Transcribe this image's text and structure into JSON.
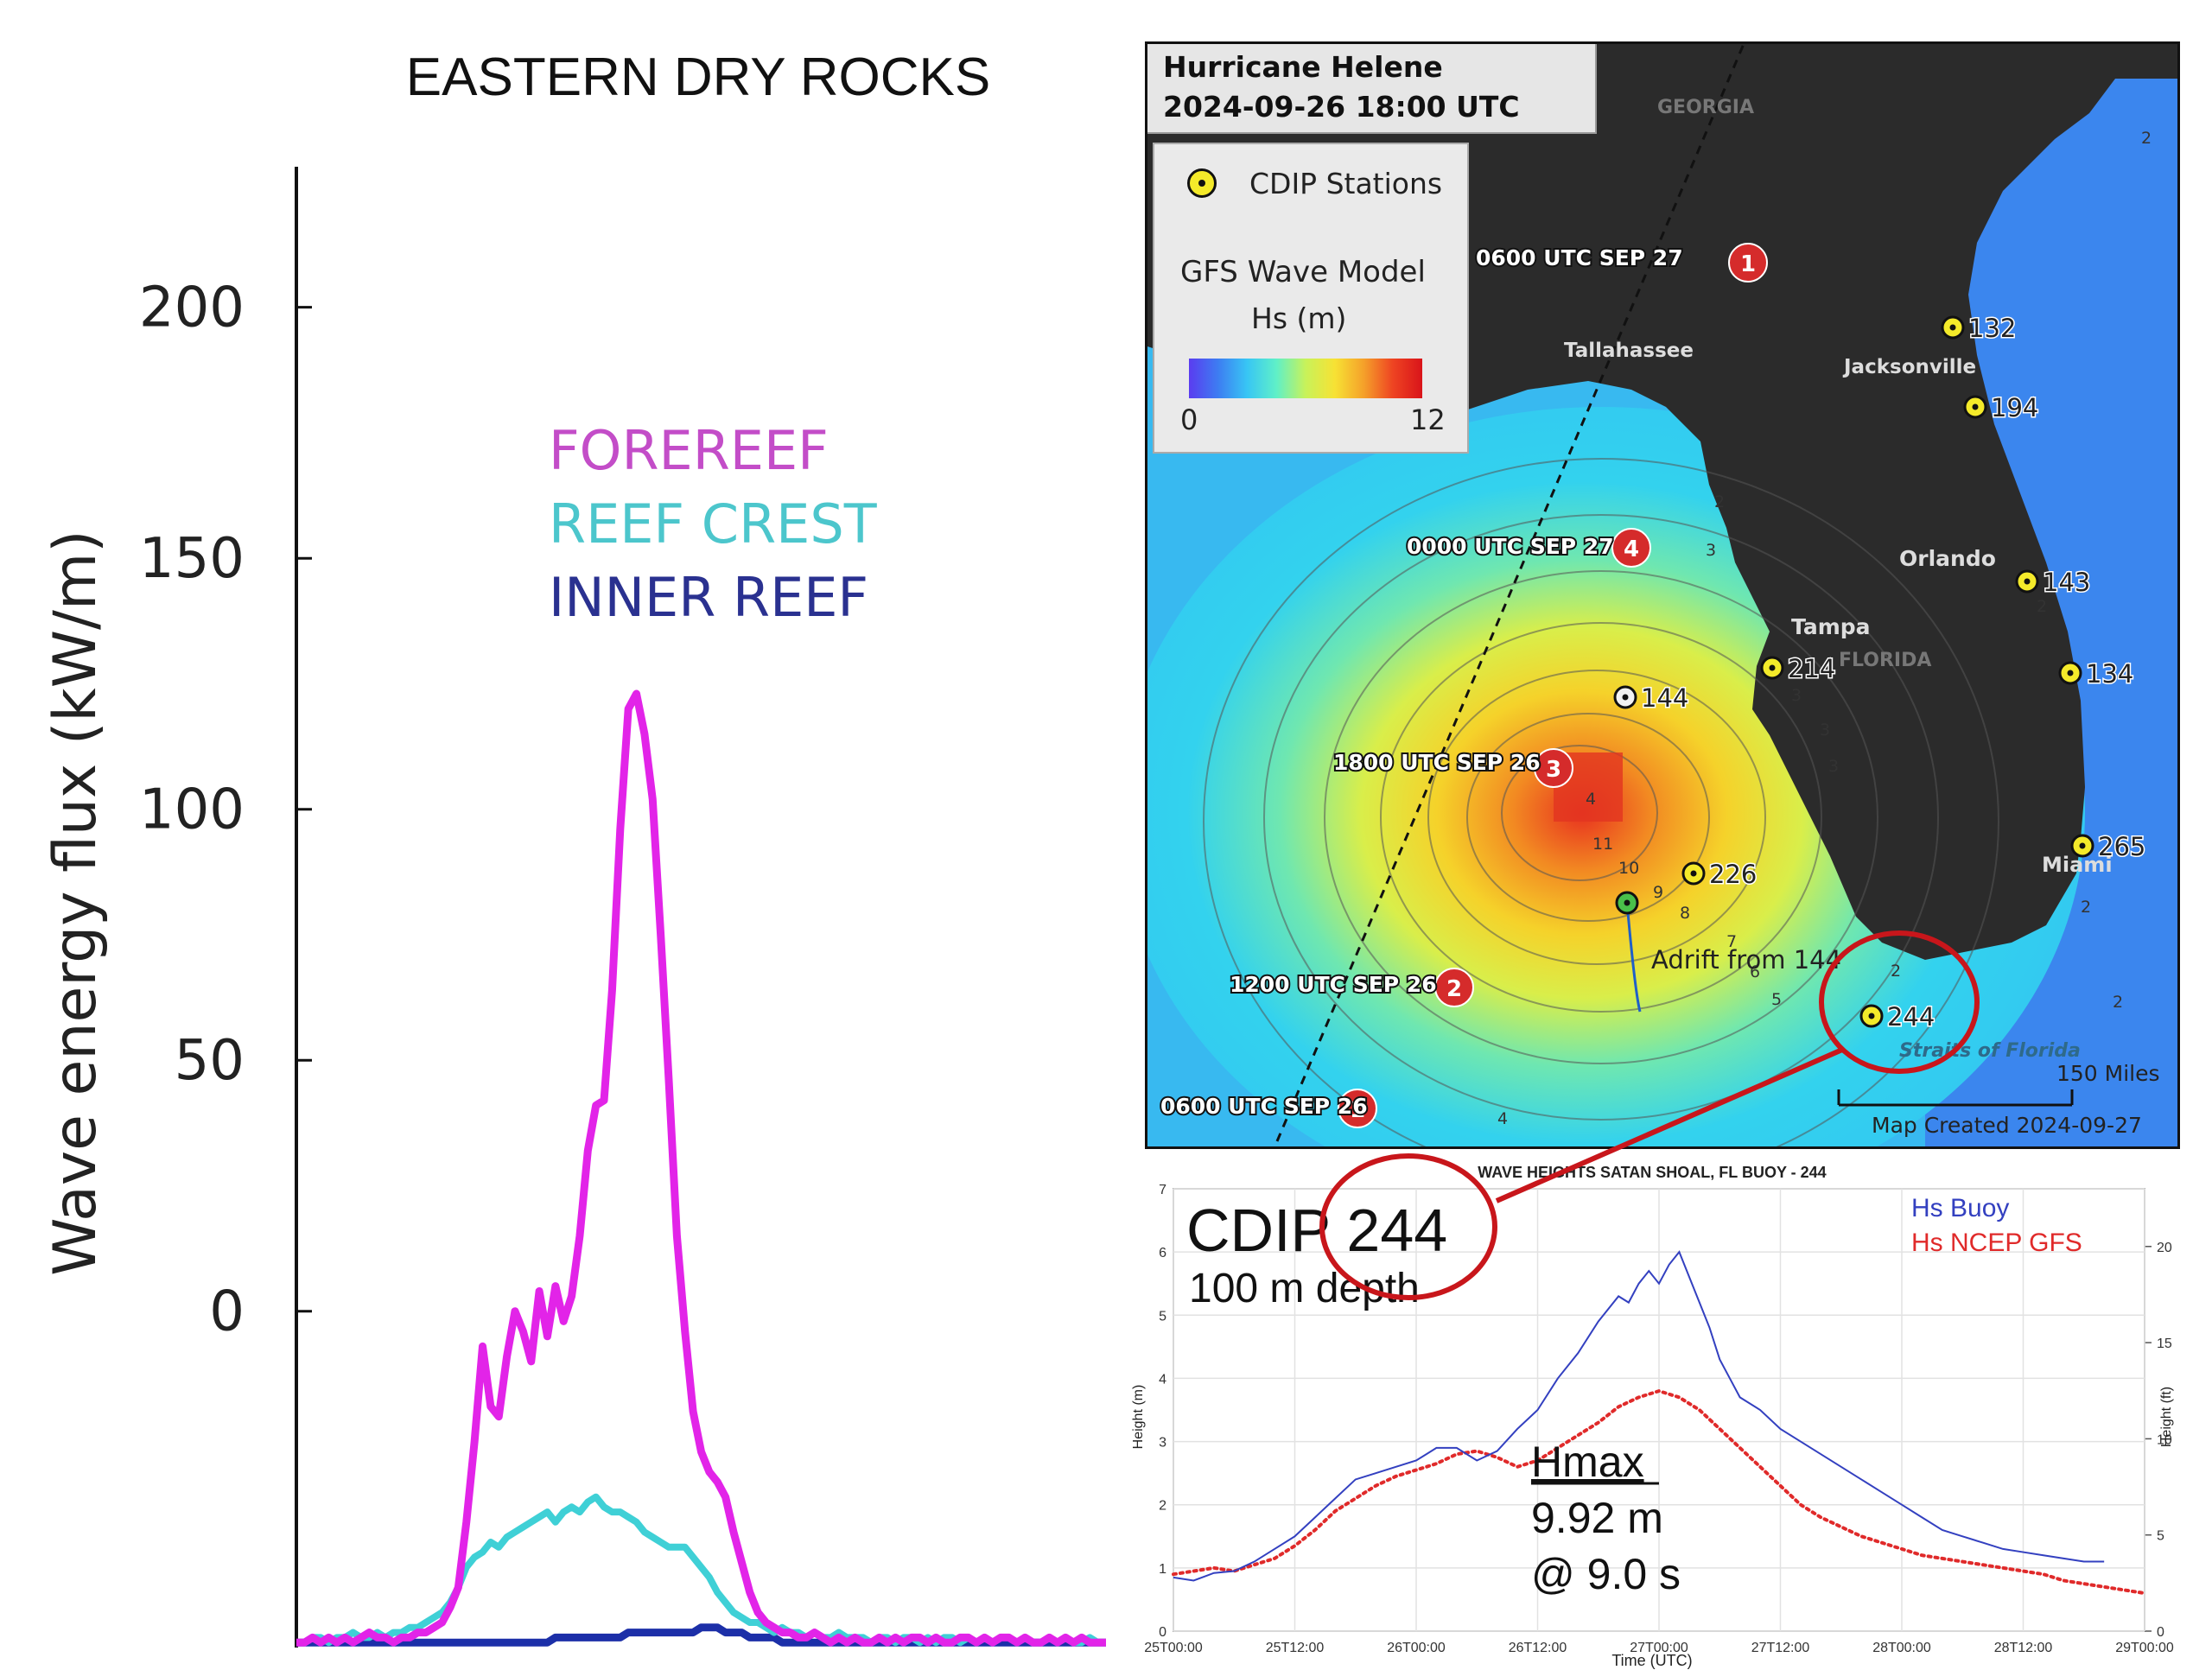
{
  "left_chart": {
    "title": "EASTERN DRY ROCKS",
    "ylabel": "Wave energy flux (kW/m)",
    "yticks": [
      "200",
      "150",
      "100",
      "50",
      "0"
    ],
    "legend": [
      "FOREREEF",
      "REEF CREST",
      "INNER REEF"
    ]
  },
  "chart_data": [
    {
      "type": "line",
      "title": "EASTERN DRY ROCKS",
      "xlabel": "",
      "ylabel": "Wave energy flux (kW/m)",
      "ylim": [
        -67,
        228
      ],
      "yticks": [
        200,
        150,
        100,
        50,
        0
      ],
      "x": [
        0,
        1,
        2,
        3,
        4,
        5,
        6,
        7,
        8,
        9,
        10,
        11,
        12,
        13,
        14,
        15,
        16,
        17,
        18,
        19,
        20,
        21,
        22,
        23,
        24,
        25,
        26,
        27,
        28,
        29,
        30,
        31,
        32,
        33,
        34,
        35,
        36,
        37,
        38,
        39,
        40,
        41,
        42,
        43,
        44,
        45,
        46,
        47,
        48,
        49,
        50,
        51,
        52,
        53,
        54,
        55,
        56,
        57,
        58,
        59,
        60,
        61,
        62,
        63,
        64,
        65,
        66,
        67,
        68,
        69,
        70,
        71,
        72,
        73,
        74,
        75,
        76,
        77,
        78,
        79,
        80,
        81,
        82,
        83,
        84,
        85,
        86,
        87,
        88,
        89,
        90,
        91,
        92,
        93,
        94,
        95,
        96,
        97,
        98,
        99,
        100
      ],
      "series": [
        {
          "name": "FOREREEF",
          "color": "#e224e8",
          "values": [
            -66,
            -66,
            -65,
            -66,
            -65,
            -66,
            -65,
            -66,
            -65,
            -64,
            -65,
            -65,
            -66,
            -65,
            -65,
            -64,
            -64,
            -63,
            -62,
            -59,
            -55,
            -42,
            -26,
            -7,
            -19,
            -21,
            -9,
            0,
            -4,
            -10,
            4,
            -5,
            5,
            -2,
            3,
            15,
            32,
            41,
            42,
            64,
            96,
            120,
            123,
            115,
            102,
            75,
            46,
            15,
            -4,
            -20,
            -28,
            -32,
            -34,
            -37,
            -44,
            -50,
            -56,
            -60,
            -62,
            -63,
            -64,
            -64,
            -65,
            -65,
            -64,
            -65,
            -66,
            -65,
            -66,
            -65,
            -66,
            -66,
            -65,
            -66,
            -65,
            -66,
            -65,
            -65,
            -66,
            -65,
            -66,
            -66,
            -65,
            -65,
            -66,
            -65,
            -66,
            -65,
            -65,
            -66,
            -65,
            -66,
            -66,
            -65,
            -66,
            -65,
            -66,
            -65,
            -66,
            -66,
            -66
          ]
        },
        {
          "name": "REEF CREST",
          "color": "#3fd0d6",
          "values": [
            -66,
            -66,
            -65,
            -65,
            -66,
            -65,
            -65,
            -64,
            -65,
            -65,
            -64,
            -65,
            -64,
            -64,
            -63,
            -63,
            -62,
            -61,
            -60,
            -58,
            -55,
            -51,
            -49,
            -48,
            -46,
            -47,
            -45,
            -44,
            -43,
            -42,
            -41,
            -40,
            -42,
            -40,
            -39,
            -40,
            -38,
            -37,
            -39,
            -40,
            -40,
            -41,
            -42,
            -44,
            -45,
            -46,
            -47,
            -47,
            -47,
            -49,
            -51,
            -53,
            -56,
            -58,
            -60,
            -61,
            -62,
            -62,
            -63,
            -64,
            -63,
            -64,
            -64,
            -65,
            -64,
            -65,
            -65,
            -64,
            -65,
            -65,
            -65,
            -66,
            -65,
            -65,
            -66,
            -65,
            -65,
            -66,
            -65,
            -66,
            -65,
            -65,
            -66,
            -65,
            -66,
            -65,
            -66,
            -65,
            -65,
            -66,
            -65,
            -66,
            -66,
            -65,
            -66,
            -65,
            -66,
            -66,
            -65,
            -66,
            -66
          ]
        },
        {
          "name": "INNER REEF",
          "color": "#1c2fa8",
          "values": [
            -66,
            -66,
            -66,
            -66,
            -66,
            -66,
            -66,
            -66,
            -66,
            -66,
            -66,
            -66,
            -66,
            -66,
            -66,
            -66,
            -66,
            -66,
            -66,
            -66,
            -66,
            -66,
            -66,
            -66,
            -66,
            -66,
            -66,
            -66,
            -66,
            -66,
            -66,
            -66,
            -65,
            -65,
            -65,
            -65,
            -65,
            -65,
            -65,
            -65,
            -65,
            -64,
            -64,
            -64,
            -64,
            -64,
            -64,
            -64,
            -64,
            -64,
            -63,
            -63,
            -63,
            -64,
            -64,
            -64,
            -65,
            -65,
            -65,
            -65,
            -66,
            -66,
            -66,
            -66,
            -66,
            -66,
            -66,
            -66,
            -66,
            -66,
            -66,
            -66,
            -66,
            -66,
            -66,
            -66,
            -66,
            -66,
            -66,
            -66,
            -66,
            -66,
            -66,
            -66,
            -66,
            -66,
            -66,
            -66,
            -66,
            -66,
            -66,
            -66,
            -66,
            -66,
            -66,
            -66,
            -66,
            -66,
            -66,
            -66,
            -66
          ]
        }
      ]
    },
    {
      "type": "line",
      "title": "WAVE HEIGHTS SATAN SHOAL, FL BUOY - 244",
      "xlabel": "Time (UTC)",
      "ylabel": "Height (m)",
      "ylabel_right": "Height (ft)",
      "ylim": [
        0,
        7
      ],
      "ylim_right": [
        0,
        23
      ],
      "xticks": [
        "25T00:00",
        "25T12:00",
        "26T00:00",
        "26T12:00",
        "27T00:00",
        "27T12:00",
        "28T00:00",
        "28T12:00",
        "29T00:00"
      ],
      "yticks": [
        0,
        1,
        2,
        3,
        4,
        5,
        6,
        7
      ],
      "yticks_right": [
        0,
        5,
        10,
        15,
        20
      ],
      "xlim": [
        0,
        96
      ],
      "grid": true,
      "legend_position": "top-right",
      "series": [
        {
          "name": "Hs Buoy",
          "color": "#3340c0",
          "x": [
            0,
            2,
            4,
            6,
            8,
            10,
            12,
            14,
            16,
            18,
            20,
            22,
            24,
            26,
            28,
            30,
            32,
            34,
            36,
            38,
            40,
            42,
            44,
            45,
            46,
            47,
            48,
            49,
            50,
            51,
            52,
            53,
            54,
            55,
            56,
            58,
            60,
            62,
            64,
            66,
            68,
            70,
            72,
            74,
            76,
            78,
            80,
            82,
            84,
            86,
            88,
            90,
            92
          ],
          "values": [
            0.85,
            0.8,
            0.92,
            0.95,
            1.1,
            1.3,
            1.5,
            1.8,
            2.1,
            2.4,
            2.5,
            2.6,
            2.7,
            2.9,
            2.9,
            2.7,
            2.85,
            3.2,
            3.5,
            4.0,
            4.4,
            4.9,
            5.3,
            5.2,
            5.5,
            5.7,
            5.5,
            5.8,
            6.0,
            5.6,
            5.2,
            4.8,
            4.3,
            4.0,
            3.7,
            3.5,
            3.2,
            3.0,
            2.8,
            2.6,
            2.4,
            2.2,
            2.0,
            1.8,
            1.6,
            1.5,
            1.4,
            1.3,
            1.25,
            1.2,
            1.15,
            1.1,
            1.1
          ]
        },
        {
          "name": "Hs NCEP GFS",
          "color": "#e02a2a",
          "x": [
            0,
            2,
            4,
            6,
            8,
            10,
            12,
            14,
            16,
            18,
            20,
            22,
            24,
            26,
            28,
            30,
            32,
            34,
            36,
            38,
            40,
            42,
            44,
            46,
            48,
            50,
            52,
            54,
            56,
            58,
            60,
            62,
            64,
            66,
            68,
            70,
            72,
            74,
            76,
            78,
            80,
            82,
            84,
            86,
            88,
            90,
            92,
            94,
            96
          ],
          "values": [
            0.9,
            0.95,
            1.0,
            0.95,
            1.05,
            1.15,
            1.35,
            1.6,
            1.9,
            2.1,
            2.3,
            2.45,
            2.55,
            2.65,
            2.8,
            2.85,
            2.75,
            2.6,
            2.7,
            2.9,
            3.1,
            3.3,
            3.55,
            3.7,
            3.8,
            3.7,
            3.5,
            3.2,
            2.9,
            2.6,
            2.3,
            2.0,
            1.8,
            1.65,
            1.5,
            1.4,
            1.3,
            1.2,
            1.15,
            1.1,
            1.05,
            1.0,
            0.95,
            0.9,
            0.8,
            0.75,
            0.7,
            0.65,
            0.6
          ]
        }
      ]
    }
  ],
  "map": {
    "title_line1": "Hurricane Helene",
    "title_line2": "2024-09-26 18:00 UTC",
    "legend_stations": "CDIP Stations",
    "legend_model": "GFS Wave Model",
    "legend_hs": "Hs (m)",
    "colorbar_min": "0",
    "colorbar_max": "12",
    "place_georgia": "GEORGIA",
    "place_florida": "FLORIDA",
    "place_tallahassee": "Tallahassee",
    "place_jacksonville": "Jacksonville",
    "place_orlando": "Orlando",
    "place_tampa": "Tampa",
    "place_miami": "Miami",
    "place_straits": "Straits of Florida",
    "track_labels": [
      "0600 UTC SEP 27",
      "0000 UTC SEP 27",
      "1800 UTC SEP 26",
      "1200 UTC SEP 26",
      "0600 UTC SEP 26"
    ],
    "track_categories": [
      "1",
      "4",
      "3",
      "2",
      "1"
    ],
    "stations": [
      "132",
      "194",
      "143",
      "134",
      "265",
      "214",
      "144",
      "226",
      "244"
    ],
    "adrift_label": "Adrift from 144",
    "scale_label": "150 Miles",
    "created_label": "Map Created 2024-09-27",
    "contour_labels": [
      "2",
      "2",
      "2",
      "3",
      "3",
      "3",
      "3",
      "4",
      "5",
      "6",
      "7",
      "8",
      "9",
      "10",
      "11",
      "2",
      "2",
      "2",
      "2",
      "4"
    ]
  },
  "buoy": {
    "header": "WAVE HEIGHTS SATAN SHOAL, FL BUOY - 244",
    "cdip_label": "CDIP 244",
    "depth_label": "100 m depth",
    "hmax_label": "Hmax",
    "hmax_value": "9.92 m",
    "hmax_period": "@ 9.0 s",
    "legend_buoy": "Hs Buoy",
    "legend_gfs": "Hs NCEP GFS",
    "ylabel": "Height (m)",
    "ylabel_right": "Height (ft)",
    "xlabel": "Time (UTC)"
  },
  "colors": {
    "forereef": "#e224e8",
    "reef_crest": "#3fd0d6",
    "inner_reef": "#1c2fa8",
    "callout": "#c8161b",
    "land": "#2b2b2b"
  }
}
